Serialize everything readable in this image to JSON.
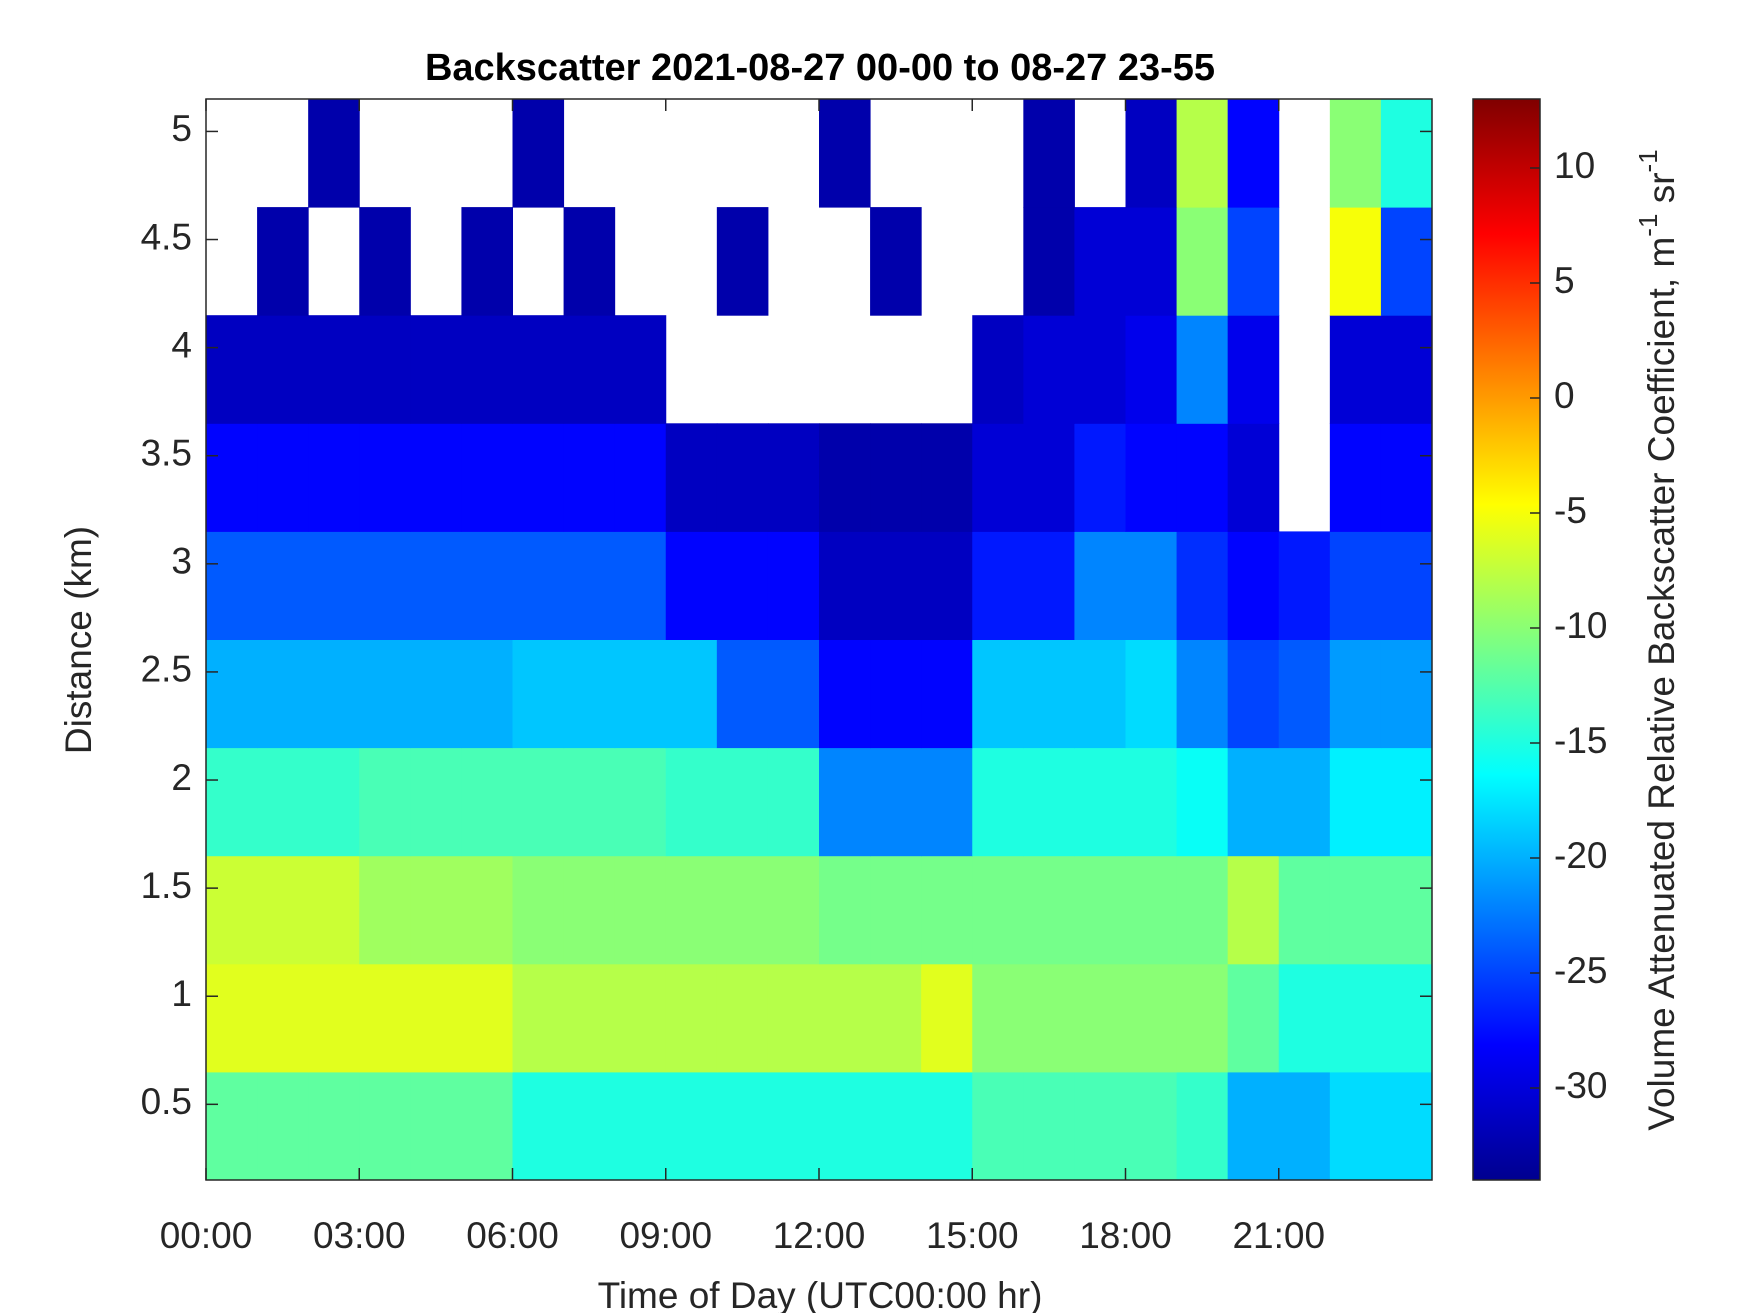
{
  "chart_data": {
    "type": "heatmap",
    "title": "Backscatter 2021-08-27 00-00 to 08-27 23-55",
    "xlabel": "Time of Day (UTC00:00 hr)",
    "ylabel": "Distance (km)",
    "colorbar_label": [
      "Volume Attenuated Relative Backscatter Coefficient, m",
      "-1",
      " sr",
      "-1"
    ],
    "xbins": [
      0,
      1,
      2,
      3,
      4,
      5,
      6,
      7,
      8,
      9,
      10,
      11,
      12,
      13,
      14,
      15,
      16,
      17,
      18,
      19,
      20,
      21,
      22,
      23,
      24
    ],
    "ybins": [
      0.15,
      0.65,
      1.15,
      1.65,
      2.15,
      2.65,
      3.15,
      3.65,
      4.15,
      4.65,
      5.15
    ],
    "xlim": [
      0,
      24
    ],
    "ylim": [
      0.15,
      5.15
    ],
    "xticks": [
      {
        "value": 0,
        "label": "00:00"
      },
      {
        "value": 3,
        "label": "03:00"
      },
      {
        "value": 6,
        "label": "06:00"
      },
      {
        "value": 9,
        "label": "09:00"
      },
      {
        "value": 12,
        "label": "12:00"
      },
      {
        "value": 15,
        "label": "15:00"
      },
      {
        "value": 18,
        "label": "18:00"
      },
      {
        "value": 21,
        "label": "21:00"
      }
    ],
    "yticks": [
      0.5,
      1,
      1.5,
      2,
      2.5,
      3,
      3.5,
      4,
      4.5,
      5
    ],
    "clim": [
      -34,
      13
    ],
    "cticks": [
      -30,
      -25,
      -20,
      -15,
      -10,
      -5,
      0,
      5,
      10
    ],
    "colormap": "jet",
    "z": [
      [
        -12,
        -12,
        -12,
        -12,
        -12,
        -12,
        -15,
        -15,
        -15,
        -15,
        -15,
        -15,
        -15,
        -15,
        -15,
        -13,
        -13,
        -13,
        -13,
        -14,
        -20,
        -20,
        -18,
        -18
      ],
      [
        -6,
        -6,
        -6,
        -6,
        -6,
        -6,
        -8,
        -8,
        -8,
        -8,
        -8,
        -8,
        -8,
        -8,
        -6,
        -10,
        -10,
        -10,
        -10,
        -10,
        -12,
        -15,
        -15,
        -15
      ],
      [
        -7,
        -7,
        -7,
        -9,
        -9,
        -9,
        -10,
        -10,
        -10,
        -10,
        -10,
        -10,
        -11,
        -11,
        -11,
        -11,
        -11,
        -11,
        -11,
        -11,
        -8,
        -12,
        -12,
        -12
      ],
      [
        -14,
        -14,
        -14,
        -13,
        -13,
        -13,
        -13,
        -13,
        -13,
        -14,
        -14,
        -14,
        -22,
        -22,
        -22,
        -15,
        -15,
        -15,
        -15,
        -16,
        -20,
        -20,
        -17,
        -17
      ],
      [
        -20,
        -20,
        -20,
        -20,
        -20,
        -20,
        -19,
        -19,
        -19,
        -19,
        -24,
        -24,
        -28,
        -28,
        -28,
        -19,
        -19,
        -19,
        -18,
        -22,
        -25,
        -24,
        -21,
        -21
      ],
      [
        -24,
        -24,
        -24,
        -24,
        -24,
        -24,
        -24,
        -24,
        -24,
        -28,
        -28,
        -28,
        -31,
        -31,
        -31,
        -27,
        -27,
        -22,
        -22,
        -26,
        -28,
        -27,
        -25,
        -25
      ],
      [
        -28,
        -28,
        -28,
        -28,
        -28,
        -28,
        -28,
        -28,
        -28,
        -31,
        -31,
        -31,
        -32,
        -32,
        -32,
        -30,
        -30,
        -27,
        -28,
        -28,
        -30,
        null,
        -28,
        -28
      ],
      [
        -31,
        -31,
        -31,
        -31,
        -31,
        -31,
        -31,
        -31,
        -31,
        null,
        null,
        null,
        null,
        null,
        null,
        -31,
        -30,
        -30,
        -29,
        -22,
        -29,
        null,
        -30,
        -30
      ],
      [
        null,
        -32,
        null,
        -32,
        null,
        -32,
        null,
        -32,
        null,
        null,
        -32,
        null,
        null,
        -32,
        null,
        null,
        -32,
        -30,
        -30,
        -10,
        -25,
        null,
        -5,
        -25
      ],
      [
        null,
        null,
        -32,
        null,
        null,
        null,
        -32,
        null,
        null,
        null,
        null,
        null,
        -32,
        null,
        null,
        null,
        -32,
        null,
        -31,
        -8,
        -28,
        null,
        -10,
        -15
      ]
    ]
  }
}
